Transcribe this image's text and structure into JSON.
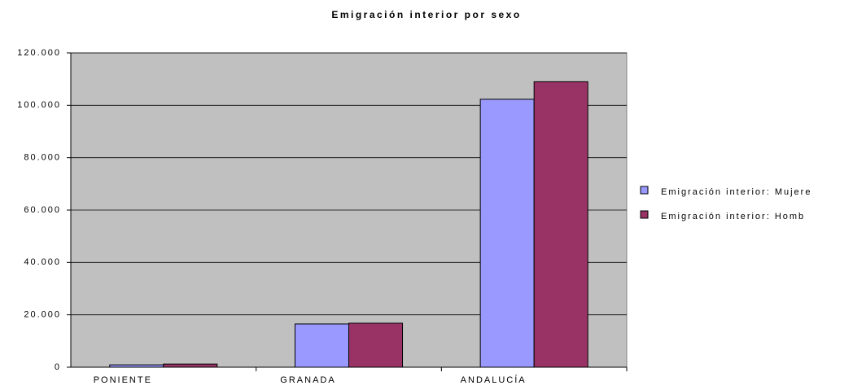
{
  "chart_data": {
    "type": "bar",
    "title": "Emigración interior por sexo",
    "categories": [
      "PONIENTE",
      "GRANADA",
      "ANDALUCÍA"
    ],
    "series": [
      {
        "name": "Emigración interior: Mujere",
        "color": "#9999ff",
        "values": [
          900,
          16500,
          102300
        ]
      },
      {
        "name": "Emigración interior: Homb",
        "color": "#993366",
        "values": [
          1200,
          16800,
          109000
        ]
      }
    ],
    "ylim": [
      0,
      120000
    ],
    "yticks": [
      0,
      {
        "value": 20000,
        "label": "20.000"
      },
      {
        "value": 40000,
        "label": "40.000"
      },
      {
        "value": 60000,
        "label": "60.000"
      },
      {
        "value": 80000,
        "label": "80.000"
      },
      {
        "value": 100000,
        "label": "100.000"
      },
      {
        "value": 120000,
        "label": "120.000"
      }
    ],
    "grid": true,
    "legend": "right"
  }
}
